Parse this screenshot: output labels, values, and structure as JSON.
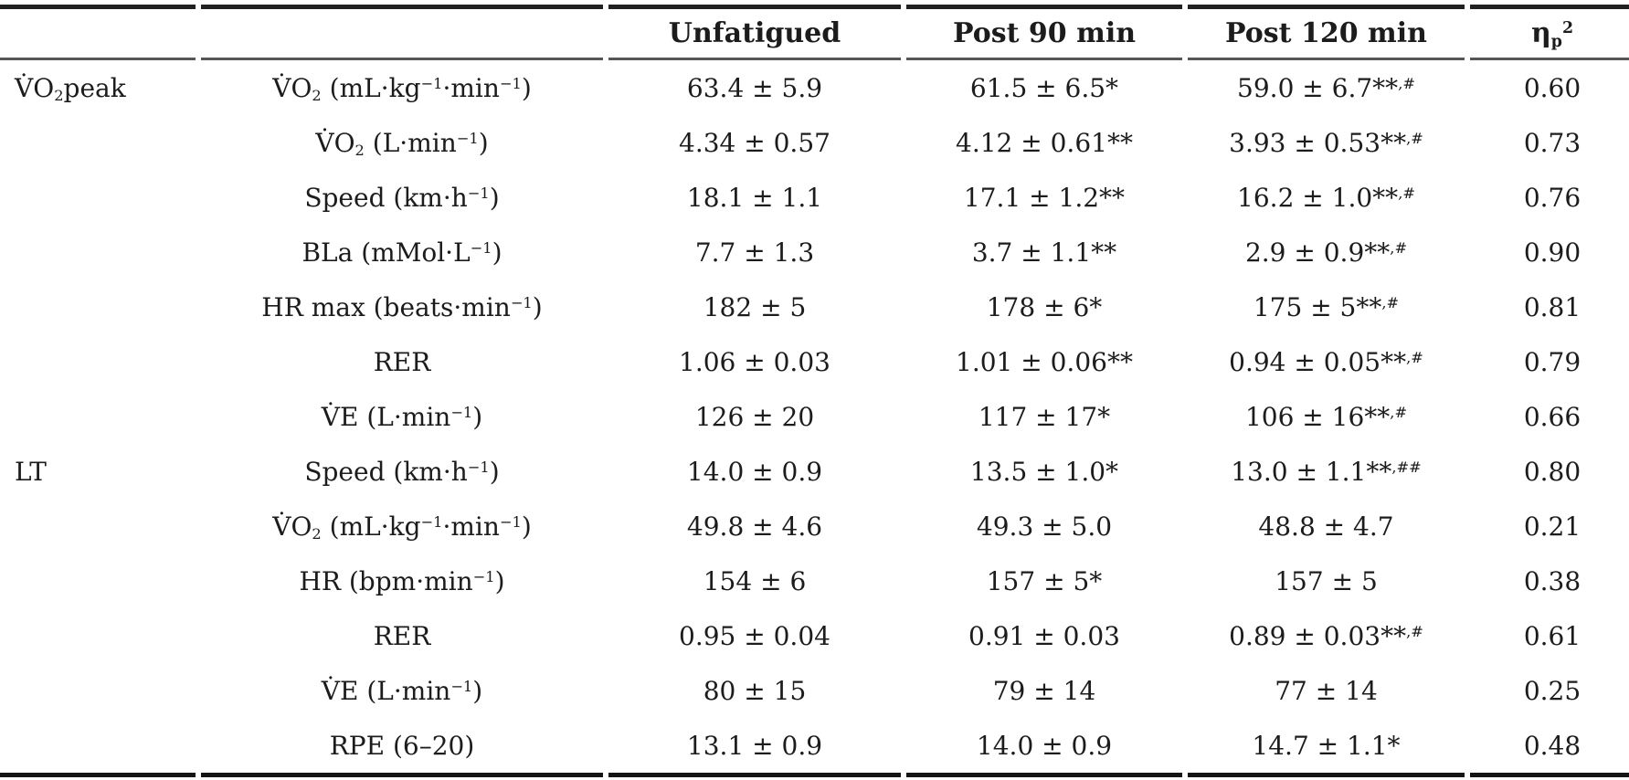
{
  "page": {
    "background": "#ffffff",
    "text_color": "#1c1c1c",
    "rule_heavy_color": "#1d1d1d",
    "rule_light_color": "#565656"
  },
  "table": {
    "headers": [
      "",
      "",
      "Unfatigued",
      "Post 90 min",
      "Post 120 min",
      "η_p_^2^"
    ],
    "rows": [
      {
        "group": "V̇O_2_peak",
        "param": "V̇O_2_ (mL·kg^−1^·min^−1^)",
        "unfatigued": "63.4 ± 5.9",
        "post90": "61.5 ± 6.5*",
        "post120": "59.0 ± 6.7**^,#^",
        "eta": "0.60"
      },
      {
        "group": "",
        "param": "V̇O_2_ (L·min^−1^)",
        "unfatigued": "4.34 ± 0.57",
        "post90": "4.12 ± 0.61**",
        "post120": "3.93 ± 0.53**^,#^",
        "eta": "0.73"
      },
      {
        "group": "",
        "param": "Speed (km·h^−1^)",
        "unfatigued": "18.1 ± 1.1",
        "post90": "17.1 ± 1.2**",
        "post120": "16.2 ± 1.0**^,#^",
        "eta": "0.76"
      },
      {
        "group": "",
        "param": "BLa (mMol·L^−1^)",
        "unfatigued": "7.7 ± 1.3",
        "post90": "3.7 ± 1.1**",
        "post120": "2.9 ± 0.9**^,#^",
        "eta": "0.90"
      },
      {
        "group": "",
        "param": "HR max (beats·min^−1^)",
        "unfatigued": "182 ± 5",
        "post90": "178 ± 6*",
        "post120": "175 ± 5**^,#^",
        "eta": "0.81"
      },
      {
        "group": "",
        "param": "RER",
        "unfatigued": "1.06 ± 0.03",
        "post90": "1.01 ± 0.06**",
        "post120": "0.94 ± 0.05**^,#^",
        "eta": "0.79"
      },
      {
        "group": "",
        "param": "V̇E (L·min^−1^)",
        "unfatigued": "126 ± 20",
        "post90": "117 ± 17*",
        "post120": "106 ± 16**^,#^",
        "eta": "0.66"
      },
      {
        "group": "LT",
        "param": "Speed (km·h^−1^)",
        "unfatigued": "14.0 ± 0.9",
        "post90": "13.5 ± 1.0*",
        "post120": "13.0 ± 1.1**^,##^",
        "eta": "0.80"
      },
      {
        "group": "",
        "param": "V̇O_2_ (mL·kg^−1^·min^−1^)",
        "unfatigued": "49.8 ± 4.6",
        "post90": "49.3 ± 5.0",
        "post120": "48.8 ± 4.7",
        "eta": "0.21"
      },
      {
        "group": "",
        "param": "HR (bpm·min^−1^)",
        "unfatigued": "154 ± 6",
        "post90": "157 ± 5*",
        "post120": "157 ± 5",
        "eta": "0.38"
      },
      {
        "group": "",
        "param": "RER",
        "unfatigued": "0.95 ± 0.04",
        "post90": "0.91 ± 0.03",
        "post120": "0.89 ± 0.03**^,#^",
        "eta": "0.61"
      },
      {
        "group": "",
        "param": "V̇E (L·min^−1^)",
        "unfatigued": "80 ± 15",
        "post90": "79 ± 14",
        "post120": "77 ± 14",
        "eta": "0.25"
      },
      {
        "group": "",
        "param": "RPE (6–20)",
        "unfatigued": "13.1 ± 0.9",
        "post90": "14.0 ± 0.9",
        "post120": "14.7 ± 1.1*",
        "eta": "0.48"
      }
    ]
  }
}
